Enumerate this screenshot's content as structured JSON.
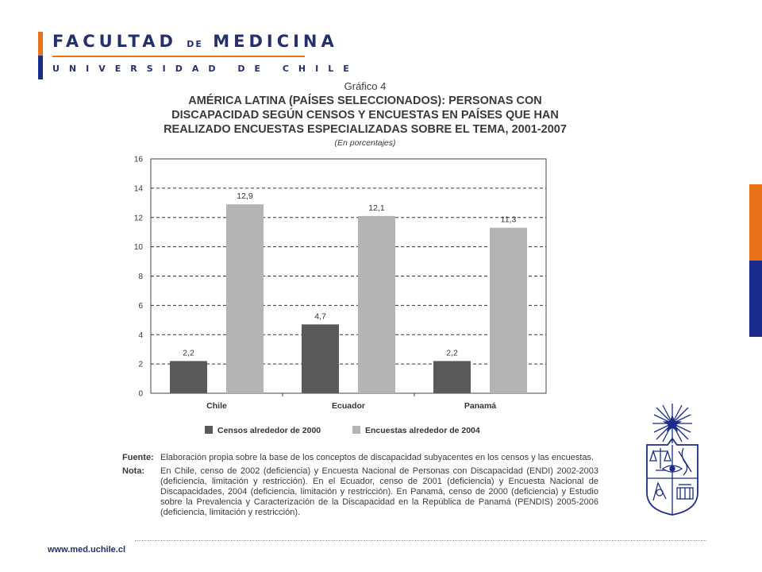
{
  "header": {
    "logo_main": "FACULTAD",
    "logo_small": "DE",
    "logo_main2": "MEDICINA",
    "logo_sub": "UNIVERSIDAD DE CHILE"
  },
  "figure": {
    "label": "Gráfico 4",
    "title_lines": [
      "AMÉRICA LATINA (PAÍSES SELECCIONADOS): PERSONAS CON",
      "DISCAPACIDAD SEGÚN CENSOS Y ENCUESTAS EN PAÍSES QUE HAN",
      "REALIZADO ENCUESTAS ESPECIALIZADAS SOBRE EL TEMA, 2001-2007"
    ],
    "unit": "(En porcentajes)"
  },
  "chart_data": {
    "type": "bar",
    "categories": [
      "Chile",
      "Ecuador",
      "Panamá"
    ],
    "series": [
      {
        "name": "Censos alrededor de 2000",
        "values": [
          2.2,
          4.7,
          2.2
        ],
        "labels": [
          "2,2",
          "4,7",
          "2,2"
        ],
        "color": "#5a5a5a"
      },
      {
        "name": "Encuestas alrededor de 2004",
        "values": [
          12.9,
          12.1,
          11.3
        ],
        "labels": [
          "12,9",
          "12,1",
          "11,3"
        ],
        "color": "#b4b4b4"
      }
    ],
    "ylim": [
      0,
      16
    ],
    "yticks": [
      0,
      2,
      4,
      6,
      8,
      10,
      12,
      14,
      16
    ],
    "grid": true,
    "legend": "bottom"
  },
  "notes": {
    "fuente_label": "Fuente:",
    "fuente_text": "Elaboración propia sobre la base de los conceptos de discapacidad subyacentes en los censos y las encuestas.",
    "nota_label": "Nota:",
    "nota_text": "En Chile, censo de 2002 (deficiencia) y Encuesta Nacional de Personas con Discapacidad (ENDI) 2002-2003 (deficiencia, limitación y restricción). En el Ecuador, censo de 2001 (deficiencia) y Encuesta Nacional de Discapacidades, 2004 (deficiencia, limitación y restricción). En Panamá, censo de 2000 (deficiencia) y Estudio sobre la Prevalencia y Caracterización de la Discapacidad en la República de Panamá (PENDIS) 2005-2006 (deficiencia, limitación y restricción)."
  },
  "footer": {
    "url": "www.med.uchile.cl"
  },
  "colors": {
    "brand_orange": "#E8731A",
    "brand_blue": "#1A2B8C",
    "logo_text": "#23306B"
  },
  "icons": {
    "crest": "university-crest-icon"
  }
}
